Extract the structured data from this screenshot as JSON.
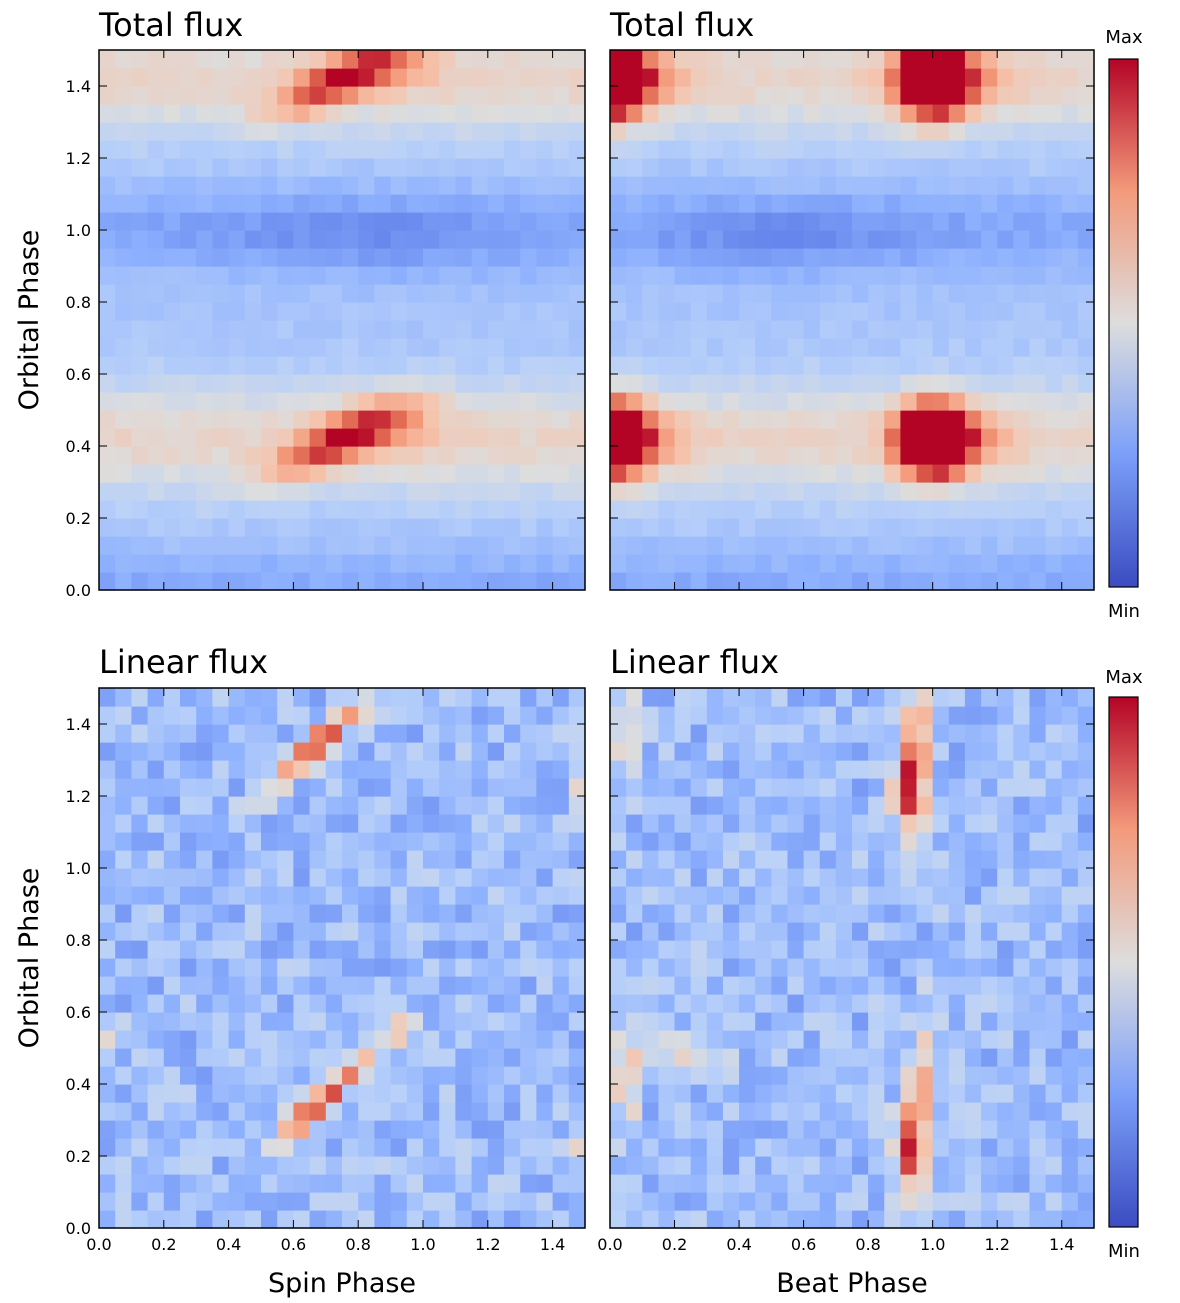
{
  "chart_data": [
    {
      "type": "heatmap",
      "panel": "top-left",
      "title": "Total flux",
      "xlabel": "",
      "ylabel": "Orbital Phase",
      "xlim": [
        0,
        1.5
      ],
      "ylim": [
        0,
        1.5
      ],
      "xticks": [],
      "yticks": [
        "0.0",
        "0.2",
        "0.4",
        "0.6",
        "0.8",
        "1.0",
        "1.2",
        "1.4"
      ],
      "colormap": "coolwarm",
      "peaks": [
        {
          "x": 0.75,
          "y": 0.42,
          "value": 1.0
        },
        {
          "x": 0.75,
          "y": 1.42,
          "value": 1.0
        }
      ]
    },
    {
      "type": "heatmap",
      "panel": "top-right",
      "title": "Total flux",
      "xlabel": "",
      "ylabel": "",
      "xlim": [
        0,
        1.5
      ],
      "ylim": [
        0,
        1.5
      ],
      "xticks": [],
      "yticks": [],
      "colormap": "coolwarm",
      "peaks": [
        {
          "x": 0.0,
          "y": 0.42,
          "value": 1.0
        },
        {
          "x": 1.0,
          "y": 0.42,
          "value": 1.0
        },
        {
          "x": 0.0,
          "y": 1.42,
          "value": 1.0
        },
        {
          "x": 1.0,
          "y": 1.42,
          "value": 1.0
        }
      ]
    },
    {
      "type": "heatmap",
      "panel": "bottom-left",
      "title": "Linear flux",
      "xlabel": "Spin Phase",
      "ylabel": "Orbital Phase",
      "xlim": [
        0,
        1.5
      ],
      "ylim": [
        0,
        1.5
      ],
      "xticks": [
        "0.0",
        "0.2",
        "0.4",
        "0.6",
        "0.8",
        "1.0",
        "1.2",
        "1.4"
      ],
      "yticks": [
        "0.0",
        "0.2",
        "0.4",
        "0.6",
        "0.8",
        "1.0",
        "1.2",
        "1.4"
      ],
      "colormap": "coolwarm",
      "peaks": [
        {
          "x": 0.68,
          "y": 0.35,
          "value": 1.0
        },
        {
          "x": 0.68,
          "y": 1.35,
          "value": 1.0
        }
      ]
    },
    {
      "type": "heatmap",
      "panel": "bottom-right",
      "title": "Linear flux",
      "xlabel": "Beat Phase",
      "ylabel": "",
      "xlim": [
        0,
        1.5
      ],
      "ylim": [
        0,
        1.5
      ],
      "xticks": [
        "0.0",
        "0.2",
        "0.4",
        "0.6",
        "0.8",
        "1.0",
        "1.2",
        "1.4"
      ],
      "yticks": [],
      "colormap": "coolwarm",
      "peaks": [
        {
          "x": 0.93,
          "y": 0.22,
          "value": 1.0
        },
        {
          "x": 0.93,
          "y": 1.22,
          "value": 1.0
        }
      ]
    }
  ],
  "colorbars": [
    {
      "max_label": "Max",
      "min_label": "Min"
    },
    {
      "max_label": "Max",
      "min_label": "Min"
    }
  ]
}
